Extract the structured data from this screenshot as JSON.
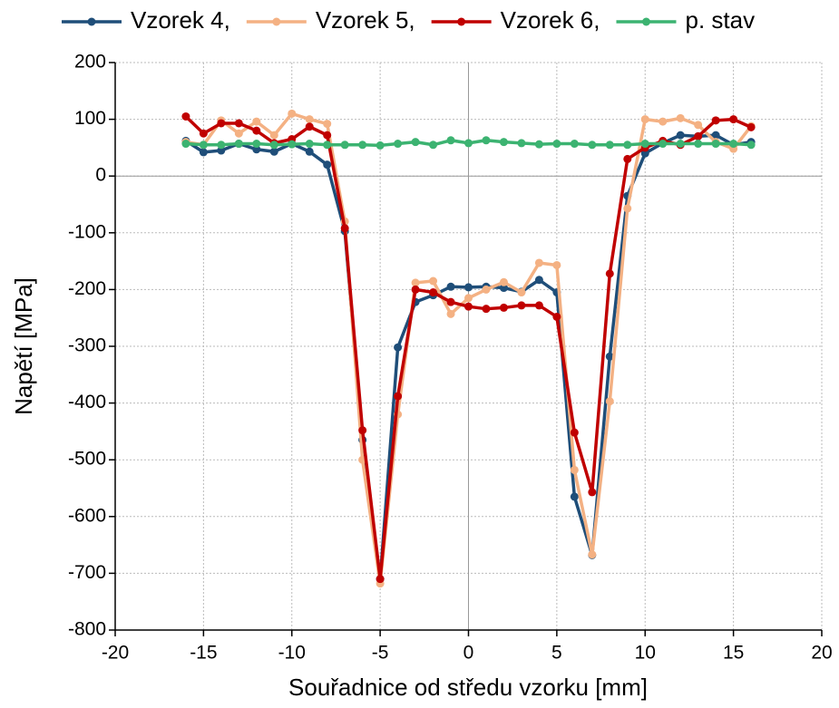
{
  "chart_data": {
    "type": "line",
    "xlabel": "Souřadnice od středu vzorku [mm]",
    "ylabel": "Napětí [MPa]",
    "x": [
      -16,
      -15,
      -14,
      -13,
      -12,
      -11,
      -10,
      -9,
      -8,
      -7,
      -6,
      -5,
      -4,
      -3,
      -2,
      -1,
      0,
      1,
      2,
      3,
      4,
      5,
      6,
      7,
      8,
      9,
      10,
      11,
      12,
      13,
      14,
      15,
      16
    ],
    "series": [
      {
        "name": "Vzorek 4,",
        "color": "#1f4e79",
        "values": [
          62,
          42,
          45,
          57,
          47,
          43,
          57,
          43,
          20,
          -97,
          -465,
          -710,
          -302,
          -222,
          -210,
          -195,
          -196,
          -195,
          -197,
          -204,
          -183,
          -205,
          -565,
          -668,
          -318,
          -35,
          40,
          58,
          72,
          70,
          72,
          55,
          60
        ]
      },
      {
        "name": "Vzorek 5,",
        "color": "#f4b183",
        "values": [
          60,
          55,
          98,
          75,
          96,
          72,
          110,
          100,
          92,
          -80,
          -500,
          -718,
          -420,
          -188,
          -185,
          -243,
          -215,
          -200,
          -187,
          -205,
          -153,
          -157,
          -518,
          -667,
          -397,
          -57,
          100,
          96,
          102,
          90,
          60,
          48,
          88
        ]
      },
      {
        "name": "Vzorek 6,",
        "color": "#c00000",
        "values": [
          105,
          75,
          93,
          93,
          80,
          58,
          65,
          87,
          72,
          -92,
          -448,
          -710,
          -388,
          -200,
          -205,
          -222,
          -230,
          -234,
          -232,
          -228,
          -228,
          -248,
          -452,
          -557,
          -172,
          30,
          50,
          62,
          55,
          70,
          98,
          100,
          86
        ]
      },
      {
        "name": "p. stav",
        "color": "#3cb371",
        "values": [
          57,
          55,
          55,
          57,
          57,
          55,
          56,
          57,
          55,
          55,
          55,
          54,
          57,
          60,
          55,
          63,
          58,
          63,
          60,
          58,
          56,
          57,
          57,
          55,
          55,
          55,
          57,
          57,
          57,
          57,
          57,
          57,
          55
        ]
      }
    ],
    "xlim": [
      -20,
      20
    ],
    "xticks": [
      -20,
      -15,
      -10,
      -5,
      0,
      5,
      10,
      15,
      20
    ],
    "ylim": [
      -800,
      200
    ],
    "yticks": [
      -800,
      -700,
      -600,
      -500,
      -400,
      -300,
      -200,
      -100,
      0,
      100,
      200
    ],
    "grid": true,
    "legend": "top"
  }
}
